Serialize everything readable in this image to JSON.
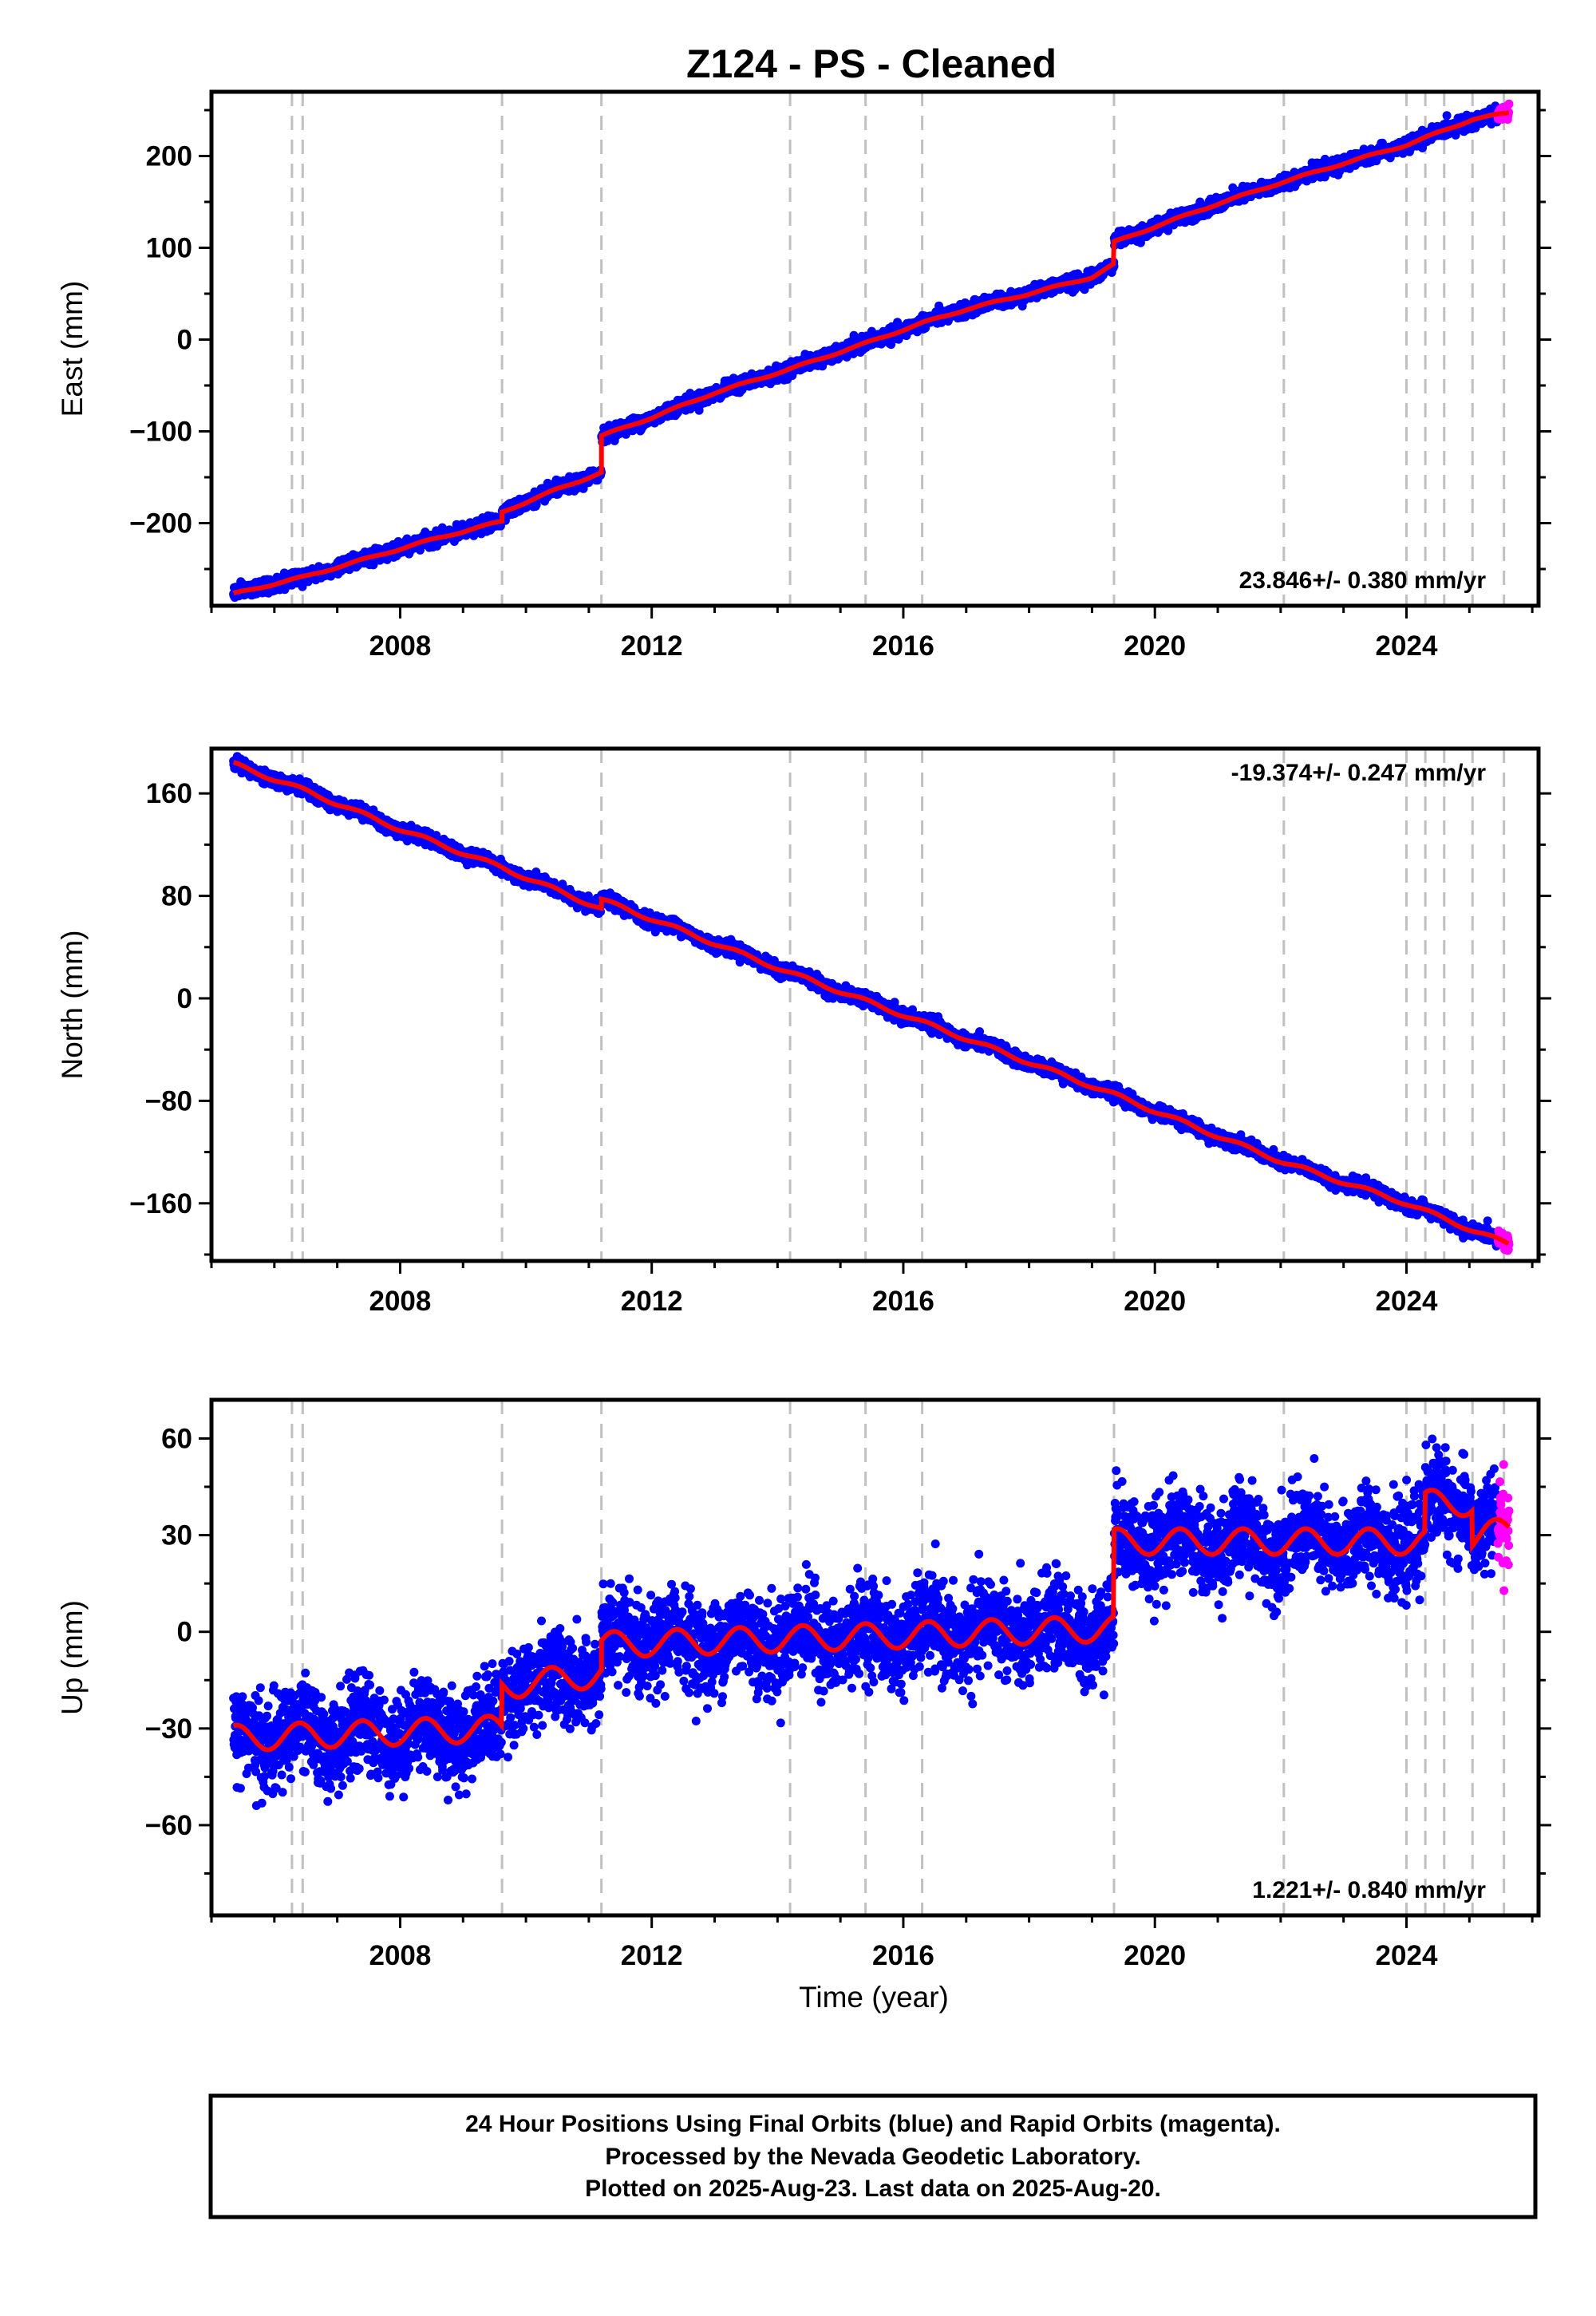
{
  "chart_data": {
    "type": "scatter",
    "title": "Z124  - PS - Cleaned",
    "xlabel": "Time (year)",
    "xlim": [
      2005.0,
      2026.1
    ],
    "x_ticks": [
      2008,
      2012,
      2016,
      2020,
      2024
    ],
    "x_tick_labels": [
      "2008",
      "2012",
      "2016",
      "2020",
      "2024"
    ],
    "x_minor_step": 1,
    "data_start": 2005.35,
    "data_end": 2025.63,
    "rapid_start": 2025.45,
    "colors": {
      "final": "#0000ff",
      "rapid": "#ff00ff",
      "model": "#ff0000",
      "steps": "#c0c0c0"
    },
    "step_epochs": [
      2006.28,
      2006.45,
      2009.62,
      2011.2,
      2014.2,
      2015.4,
      2016.3,
      2019.35,
      2022.05,
      2024.0,
      2024.3,
      2024.6,
      2025.05,
      2025.55
    ],
    "panels": [
      {
        "ylabel": "East (mm)",
        "ylim": [
          -290,
          270
        ],
        "y_ticks": [
          -200,
          -100,
          0,
          100,
          200
        ],
        "y_tick_labels": [
          "−200",
          "−100",
          "0",
          "100",
          "200"
        ],
        "y_minor_step": 50,
        "rate_label": "23.846+/- 0.380 mm/yr",
        "rate_position": "bottom-right",
        "noise": 3.5,
        "seasonal_amplitude": 1,
        "model_x": [
          2005.35,
          2006.5,
          2007.5,
          2008.5,
          2009.62,
          2009.62,
          2010.5,
          2011.2,
          2011.2,
          2012.0,
          2013.0,
          2014.2,
          2015.4,
          2016.3,
          2017.0,
          2018.0,
          2019.0,
          2019.35,
          2019.35,
          2020.0,
          2021.0,
          2022.05,
          2023.0,
          2024.0,
          2024.6,
          2025.05,
          2025.63
        ],
        "model_y": [
          -277,
          -258,
          -238,
          -218,
          -198,
          -188,
          -163,
          -145,
          -105,
          -85,
          -58,
          -32,
          -4,
          18,
          33,
          50,
          68,
          82,
          106,
          123,
          148,
          172,
          192,
          212,
          228,
          240,
          247
        ]
      },
      {
        "ylabel": "North (mm)",
        "ylim": [
          -205,
          195
        ],
        "y_ticks": [
          -160,
          -80,
          0,
          80,
          160
        ],
        "y_tick_labels": [
          "−160",
          "−80",
          "0",
          "80",
          "160"
        ],
        "y_minor_step": 40,
        "rate_label": "-19.374+/- 0.247 mm/yr",
        "rate_position": "top-right",
        "noise": 2.5,
        "seasonal_amplitude": 1.5,
        "model_x": [
          2005.35,
          2006.5,
          2008.0,
          2009.62,
          2011.2,
          2011.2,
          2012.0,
          2014.2,
          2016.0,
          2018.0,
          2019.35,
          2020.0,
          2022.05,
          2024.0,
          2025.0,
          2025.63
        ],
        "model_y": [
          183,
          162,
          132,
          102,
          70,
          77,
          62,
          20,
          -13,
          -50,
          -75,
          -88,
          -128,
          -160,
          -180,
          -192
        ]
      },
      {
        "ylabel": "Up (mm)",
        "ylim": [
          -88,
          72
        ],
        "y_ticks": [
          -60,
          -30,
          0,
          30,
          60
        ],
        "y_tick_labels": [
          "−60",
          "−30",
          "0",
          "30",
          "60"
        ],
        "y_minor_step": 15,
        "rate_label": "1.221+/- 0.840 mm/yr",
        "rate_position": "bottom-right",
        "noise": 7,
        "seasonal_amplitude": 4,
        "model_x": [
          2005.35,
          2009.62,
          2009.62,
          2011.2,
          2011.2,
          2019.35,
          2019.35,
          2024.3,
          2024.3,
          2025.05,
          2025.05,
          2025.63
        ],
        "model_y": [
          -33,
          -30,
          -17,
          -13,
          -4,
          1,
          28,
          28,
          40,
          40,
          29,
          32
        ]
      }
    ]
  },
  "footer": {
    "line1": "24 Hour Positions Using Final Orbits (blue) and Rapid Orbits (magenta).",
    "line2": "Processed by the Nevada Geodetic Laboratory.",
    "line3": "Plotted on 2025-Aug-23. Last data on 2025-Aug-20."
  }
}
